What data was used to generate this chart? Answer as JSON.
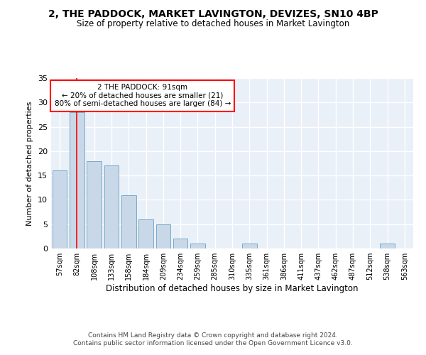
{
  "title": "2, THE PADDOCK, MARKET LAVINGTON, DEVIZES, SN10 4BP",
  "subtitle": "Size of property relative to detached houses in Market Lavington",
  "xlabel": "Distribution of detached houses by size in Market Lavington",
  "ylabel": "Number of detached properties",
  "bar_color": "#c8d8e8",
  "bar_edge_color": "#7aaac8",
  "categories": [
    "57sqm",
    "82sqm",
    "108sqm",
    "133sqm",
    "158sqm",
    "184sqm",
    "209sqm",
    "234sqm",
    "259sqm",
    "285sqm",
    "310sqm",
    "335sqm",
    "361sqm",
    "386sqm",
    "411sqm",
    "437sqm",
    "462sqm",
    "487sqm",
    "512sqm",
    "538sqm",
    "563sqm"
  ],
  "values": [
    16,
    28,
    18,
    17,
    11,
    6,
    5,
    2,
    1,
    0,
    0,
    1,
    0,
    0,
    0,
    0,
    0,
    0,
    0,
    1,
    0
  ],
  "ylim": [
    0,
    35
  ],
  "yticks": [
    0,
    5,
    10,
    15,
    20,
    25,
    30,
    35
  ],
  "annotation_text": "2 THE PADDOCK: 91sqm\n← 20% of detached houses are smaller (21)\n80% of semi-detached houses are larger (84) →",
  "annotation_box_color": "white",
  "annotation_box_edge_color": "red",
  "vline_x": 1,
  "vline_color": "red",
  "background_color": "#eaf0f8",
  "grid_color": "white",
  "footer_line1": "Contains HM Land Registry data © Crown copyright and database right 2024.",
  "footer_line2": "Contains public sector information licensed under the Open Government Licence v3.0."
}
